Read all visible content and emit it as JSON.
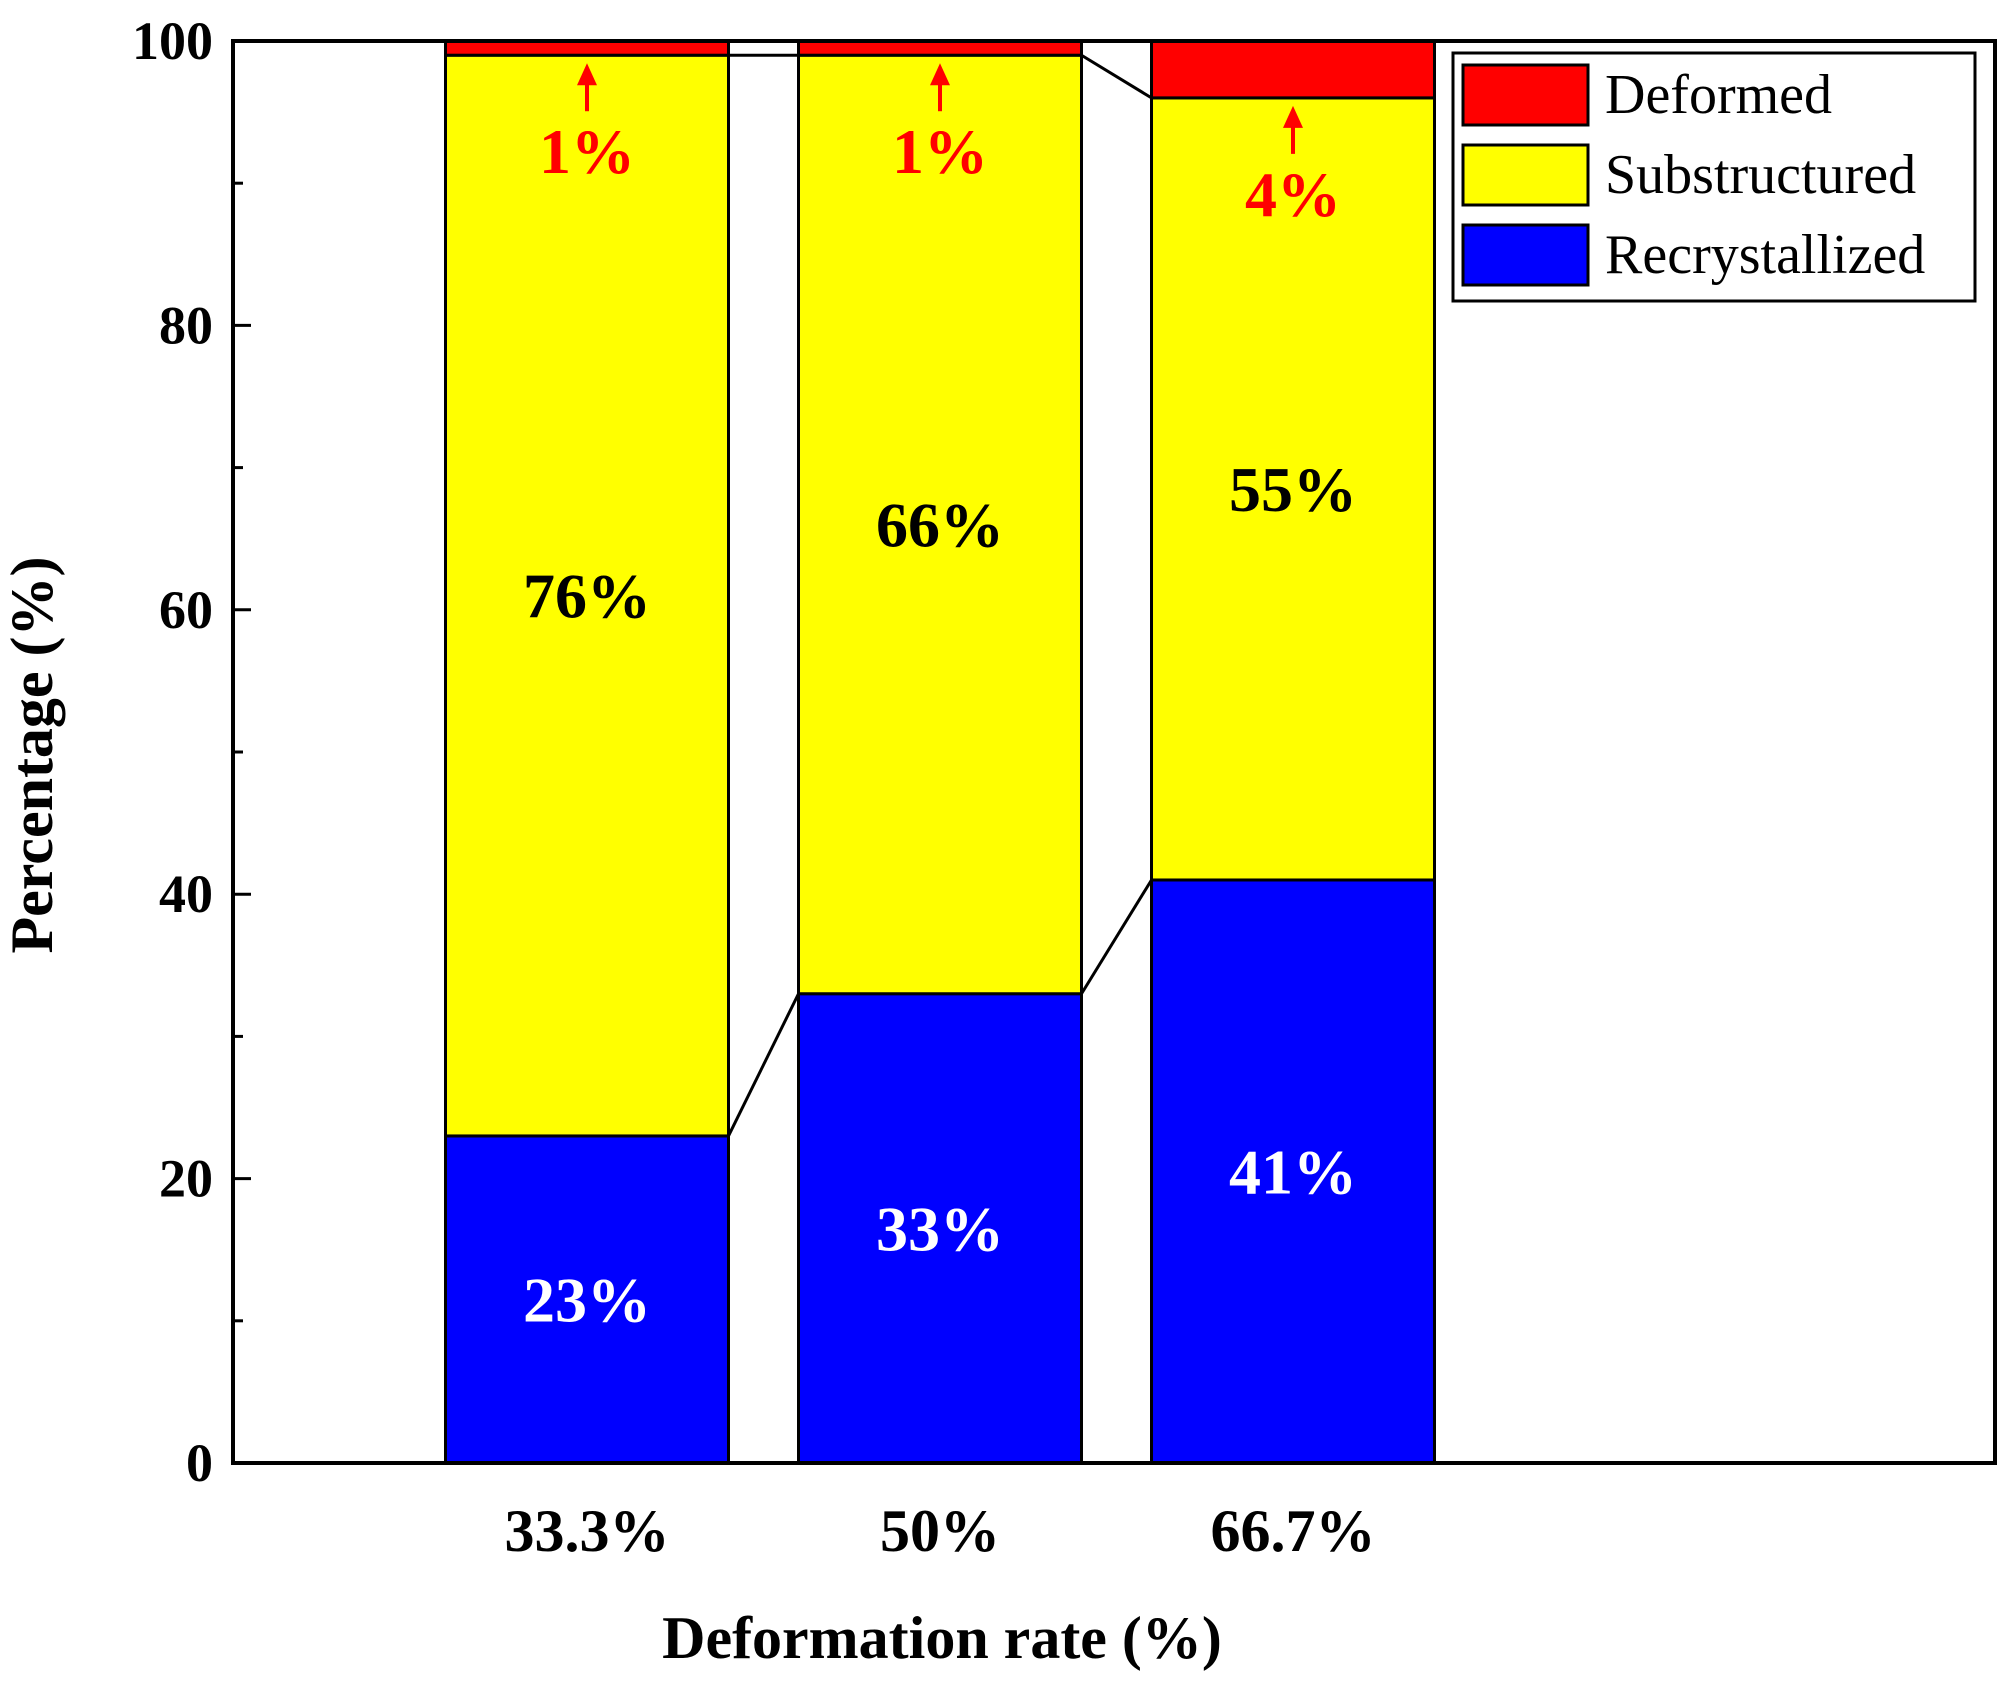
{
  "chart_data": {
    "type": "bar",
    "stacked": true,
    "xlabel": "Deformation rate (%)",
    "ylabel": "Percentage (%)",
    "ylim": [
      0,
      100
    ],
    "yticks": [
      0,
      20,
      40,
      60,
      80,
      100
    ],
    "categories": [
      "33.3%",
      "50%",
      "66.7%"
    ],
    "series": [
      {
        "name": "Recrystallized",
        "color": "#0000ff",
        "values": [
          23,
          33,
          41
        ],
        "labels": [
          "23%",
          "33%",
          "41%"
        ],
        "label_color": "#ffffff"
      },
      {
        "name": "Substructured",
        "color": "#ffff00",
        "values": [
          76,
          66,
          55
        ],
        "labels": [
          "76%",
          "66%",
          "55%"
        ],
        "label_color": "#000000"
      },
      {
        "name": "Deformed",
        "color": "#ff0000",
        "values": [
          1,
          1,
          4
        ],
        "labels": [
          "1%",
          "1%",
          "4%"
        ],
        "label_color": "#ff0000"
      }
    ],
    "legend": {
      "position": "top-right"
    },
    "grid": false
  }
}
